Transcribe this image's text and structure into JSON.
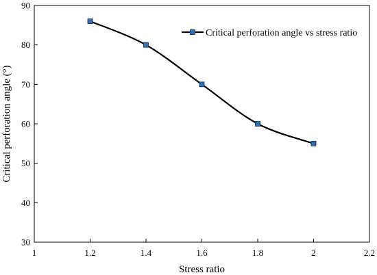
{
  "chart_data": {
    "type": "line",
    "title": "",
    "xlabel": "Stress ratio",
    "ylabel": "Critical perforation angle (°)",
    "xlim": [
      1,
      2.2
    ],
    "ylim": [
      30,
      90
    ],
    "xticks": [
      "1",
      "1.2",
      "1.4",
      "1.6",
      "1.8",
      "2",
      "2.2"
    ],
    "yticks": [
      "30",
      "40",
      "50",
      "60",
      "70",
      "80",
      "90"
    ],
    "grid": false,
    "legend_position": "top-right",
    "series": [
      {
        "name": "Critical perforation angle vs stress ratio",
        "color": "#000000",
        "marker_color": "#2e6fb0",
        "marker": "square",
        "smooth": true,
        "x": [
          1.2,
          1.4,
          1.6,
          1.8,
          2.0
        ],
        "y": [
          86,
          80,
          70,
          60,
          55
        ]
      }
    ]
  }
}
